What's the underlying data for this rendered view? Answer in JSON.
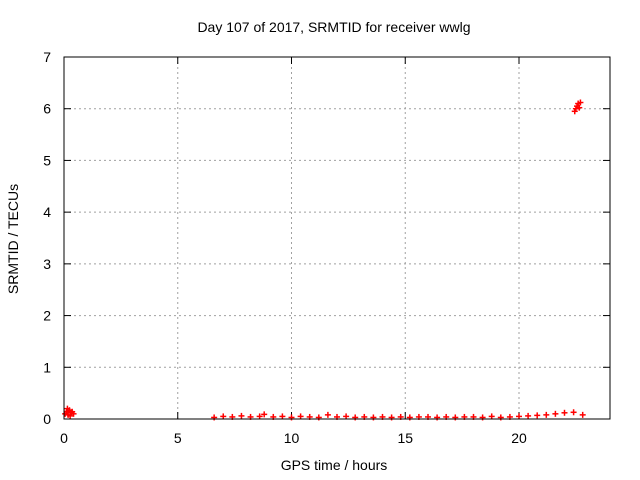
{
  "chart_data": {
    "type": "scatter",
    "title": "Day 107 of 2017, SRMTID for receiver wwlg",
    "xlabel": "GPS time / hours",
    "ylabel": "SRMTID / TECUs",
    "xlim": [
      0,
      24
    ],
    "ylim": [
      0,
      7
    ],
    "xticks": [
      0,
      5,
      10,
      15,
      20
    ],
    "yticks": [
      0,
      1,
      2,
      3,
      4,
      5,
      6,
      7
    ],
    "xtick_labels": [
      "0",
      "5",
      "10",
      "15",
      "20"
    ],
    "ytick_labels": [
      "0",
      "1",
      "2",
      "3",
      "4",
      "5",
      "6",
      "7"
    ],
    "grid": true,
    "marker": "+",
    "colors": {
      "series": "#ff0000",
      "grid": "#a0a0a0",
      "axis": "#000000"
    },
    "series": [
      {
        "name": "SRMTID",
        "x": [
          0.05,
          0.12,
          0.18,
          0.24,
          0.3,
          0.36,
          0.42,
          0.15,
          0.27,
          0.33,
          6.6,
          7.0,
          7.4,
          7.8,
          8.2,
          8.6,
          8.8,
          9.2,
          9.6,
          10.0,
          10.4,
          10.8,
          11.2,
          11.6,
          12.0,
          12.4,
          12.8,
          13.2,
          13.6,
          14.0,
          14.4,
          14.8,
          15.2,
          15.6,
          16.0,
          16.4,
          16.8,
          17.2,
          17.6,
          18.0,
          18.4,
          18.8,
          19.2,
          19.6,
          20.0,
          20.4,
          20.8,
          21.2,
          21.6,
          22.0,
          22.4,
          22.8,
          22.45,
          22.5,
          22.55,
          22.6,
          22.65,
          22.7
        ],
        "y": [
          0.1,
          0.15,
          0.08,
          0.17,
          0.12,
          0.14,
          0.1,
          0.2,
          0.06,
          0.13,
          0.03,
          0.05,
          0.04,
          0.06,
          0.04,
          0.05,
          0.09,
          0.04,
          0.05,
          0.03,
          0.05,
          0.04,
          0.03,
          0.08,
          0.04,
          0.05,
          0.03,
          0.04,
          0.03,
          0.04,
          0.03,
          0.04,
          0.03,
          0.04,
          0.04,
          0.03,
          0.04,
          0.03,
          0.04,
          0.04,
          0.03,
          0.05,
          0.03,
          0.04,
          0.05,
          0.06,
          0.07,
          0.08,
          0.1,
          0.12,
          0.13,
          0.08,
          5.95,
          6.0,
          6.05,
          6.1,
          6.02,
          6.12
        ]
      }
    ]
  }
}
